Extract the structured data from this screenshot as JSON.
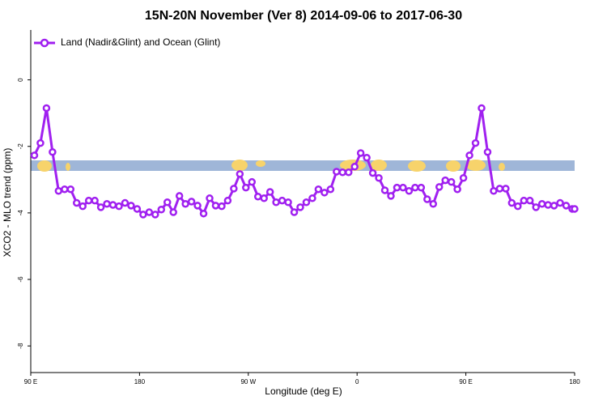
{
  "chart_data": {
    "type": "line",
    "title": "15N-20N November (Ver 8)   2014-09-06 to 2017-06-30",
    "xlabel": "Longitude (deg E)",
    "ylabel": "XCO2 - MLO trend (ppm)",
    "xlim": [
      90,
      540
    ],
    "ylim": [
      -8.8,
      1.5
    ],
    "xticks": [
      {
        "value": 90,
        "label": "90 E"
      },
      {
        "value": 180,
        "label": "180"
      },
      {
        "value": 270,
        "label": "90 W"
      },
      {
        "value": 360,
        "label": "0"
      },
      {
        "value": 450,
        "label": "90 E"
      },
      {
        "value": 540,
        "label": "180"
      }
    ],
    "yticks": [
      0,
      -2,
      -4,
      -6,
      -8
    ],
    "legend": "top-left",
    "x": [
      93,
      98,
      103,
      108,
      113,
      118,
      123,
      128,
      133,
      138,
      143,
      148,
      153,
      158,
      163,
      168,
      173,
      178,
      183,
      188,
      193,
      198,
      203,
      208,
      213,
      218,
      223,
      228,
      233,
      238,
      243,
      248,
      253,
      258,
      263,
      268,
      273,
      278,
      283,
      288,
      293,
      298,
      303,
      308,
      313,
      318,
      323,
      328,
      333,
      338,
      343,
      348,
      353,
      358,
      363,
      368,
      373,
      378,
      383,
      388,
      393,
      398,
      403,
      408,
      413,
      418,
      423,
      428,
      433,
      438,
      443,
      448,
      453,
      458,
      463,
      468,
      473,
      478,
      483,
      488,
      493,
      498,
      503,
      508,
      513,
      518,
      523,
      528,
      533,
      538,
      540
    ],
    "series": [
      {
        "name": "Land (Nadir&Glint) and Ocean (Glint)",
        "color": "#a020f0",
        "values": [
          -2.27,
          -1.9,
          -0.85,
          -2.17,
          -3.34,
          -3.29,
          -3.29,
          -3.7,
          -3.8,
          -3.63,
          -3.63,
          -3.83,
          -3.73,
          -3.76,
          -3.8,
          -3.7,
          -3.78,
          -3.88,
          -4.05,
          -3.98,
          -4.05,
          -3.9,
          -3.68,
          -3.98,
          -3.49,
          -3.73,
          -3.66,
          -3.78,
          -4.02,
          -3.56,
          -3.78,
          -3.8,
          -3.63,
          -3.27,
          -2.83,
          -3.24,
          -3.07,
          -3.51,
          -3.56,
          -3.37,
          -3.68,
          -3.63,
          -3.68,
          -3.98,
          -3.83,
          -3.68,
          -3.56,
          -3.29,
          -3.39,
          -3.29,
          -2.76,
          -2.78,
          -2.78,
          -2.61,
          -2.2,
          -2.34,
          -2.8,
          -2.95,
          -3.32,
          -3.49,
          -3.24,
          -3.24,
          -3.34,
          -3.24,
          -3.24,
          -3.59,
          -3.73,
          -3.22,
          -3.02,
          -3.07,
          -3.29,
          -2.95,
          -2.27,
          -1.9,
          -0.85,
          -2.17,
          -3.34,
          -3.27,
          -3.27,
          -3.7,
          -3.8,
          -3.63,
          -3.63,
          -3.83,
          -3.73,
          -3.76,
          -3.78,
          -3.7,
          -3.78,
          -3.88,
          -3.88
        ]
      }
    ]
  }
}
